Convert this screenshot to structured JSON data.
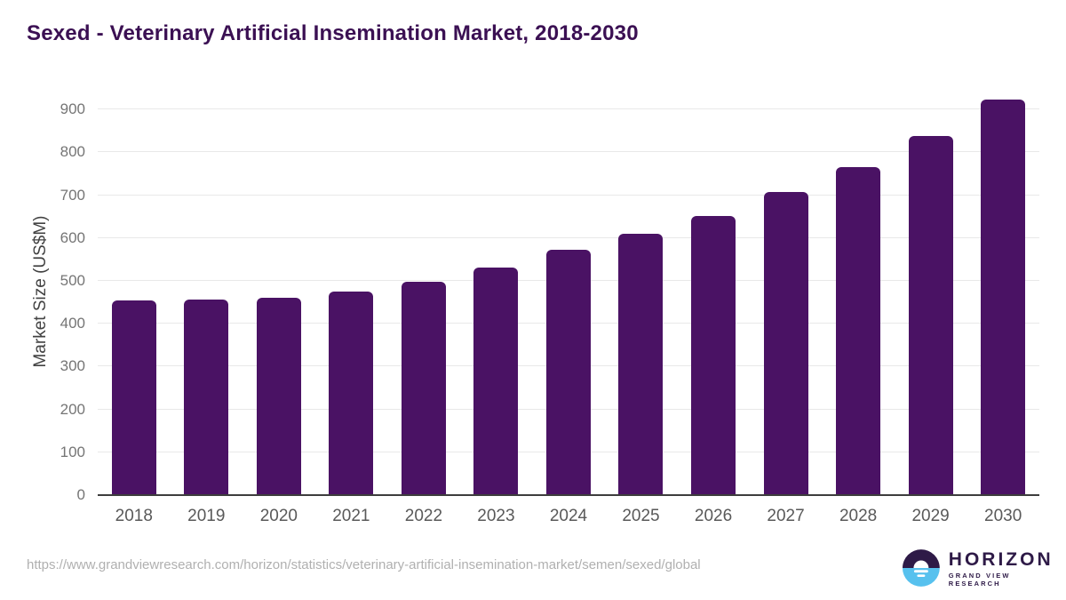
{
  "title": "Sexed - Veterinary Artificial Insemination Market, 2018-2030",
  "chart_data": {
    "type": "bar",
    "categories": [
      "2018",
      "2019",
      "2020",
      "2021",
      "2022",
      "2023",
      "2024",
      "2025",
      "2026",
      "2027",
      "2028",
      "2029",
      "2030"
    ],
    "values": [
      455,
      457,
      460,
      476,
      497,
      531,
      572,
      610,
      652,
      707,
      766,
      838,
      923
    ],
    "title": "Sexed - Veterinary Artificial Insemination Market, 2018-2030",
    "xlabel": "",
    "ylabel": "Market Size (US$M)",
    "ylim": [
      0,
      950
    ],
    "yticks": [
      0,
      100,
      200,
      300,
      400,
      500,
      600,
      700,
      800,
      900
    ],
    "grid": true,
    "legend": "none",
    "bar_color": "#4a1264"
  },
  "footer": {
    "source_url": "https://www.grandviewresearch.com/horizon/statistics/veterinary-artificial-insemination-market/semen/sexed/global"
  },
  "logo": {
    "name": "HORIZON",
    "subtitle": "GRAND VIEW RESEARCH"
  },
  "colors": {
    "bar": "#4a1264",
    "title": "#3b1053",
    "grid": "#e8e8e8",
    "axis": "#3d3d3d",
    "logo_purple": "#2e1a47",
    "logo_blue": "#57c1ee"
  }
}
